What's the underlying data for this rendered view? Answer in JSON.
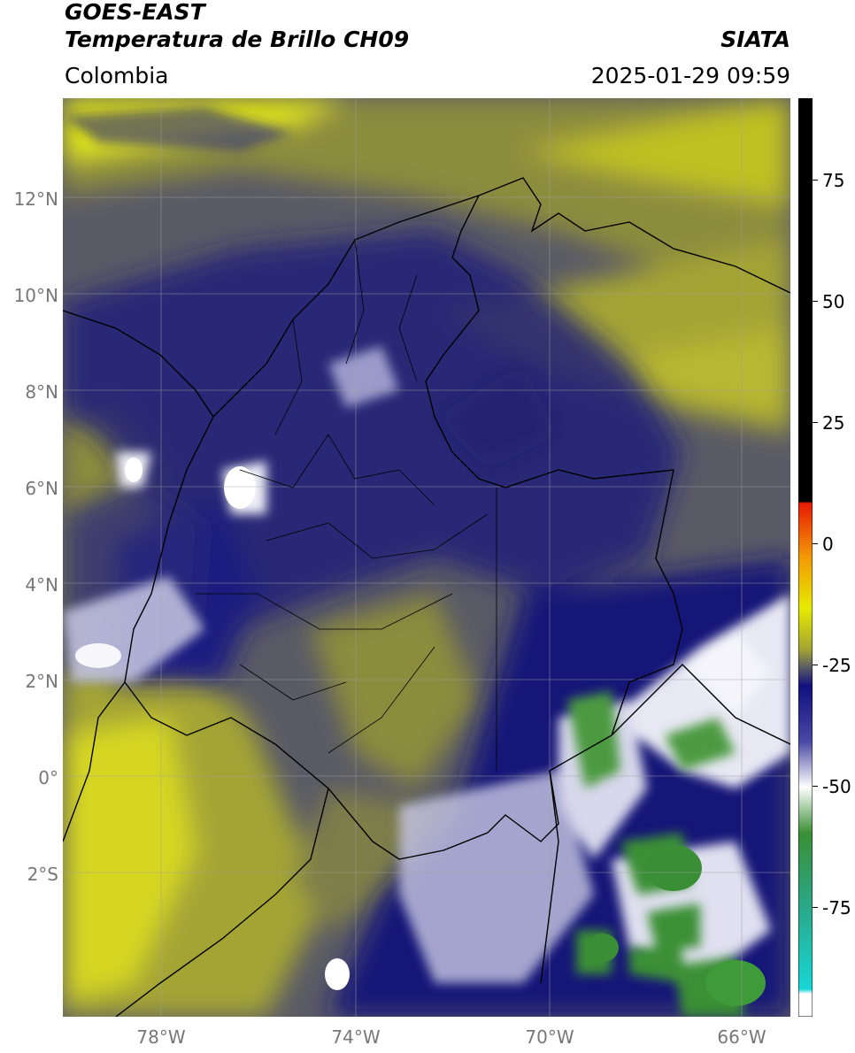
{
  "header": {
    "satellite": "GOES-EAST",
    "product": "Temperatura de Brillo CH09",
    "organization": "SIATA",
    "region": "Colombia",
    "timestamp": "2025-01-29 09:59"
  },
  "latitude_labels": [
    "12°N",
    "10°N",
    "8°N",
    "6°N",
    "4°N",
    "2°N",
    "0°",
    "2°S"
  ],
  "longitude_labels": [
    "78°W",
    "74°W",
    "70°W",
    "66°W"
  ],
  "colorbar": {
    "tick_labels": [
      "75",
      "50",
      "25",
      "0",
      "-25",
      "-50",
      "-75"
    ],
    "colors": {
      "warm": "#000000",
      "red": "#e81a05",
      "orange": "#f39a05",
      "yellow": "#e6ea00",
      "olive": "#a4a434",
      "gray": "#5a5a66",
      "navy": "#101080",
      "white": "#ffffff",
      "green": "#3a8f36",
      "cyan": "#18d6d6"
    }
  },
  "legend_icons": [
    "colorbar-gradient"
  ]
}
